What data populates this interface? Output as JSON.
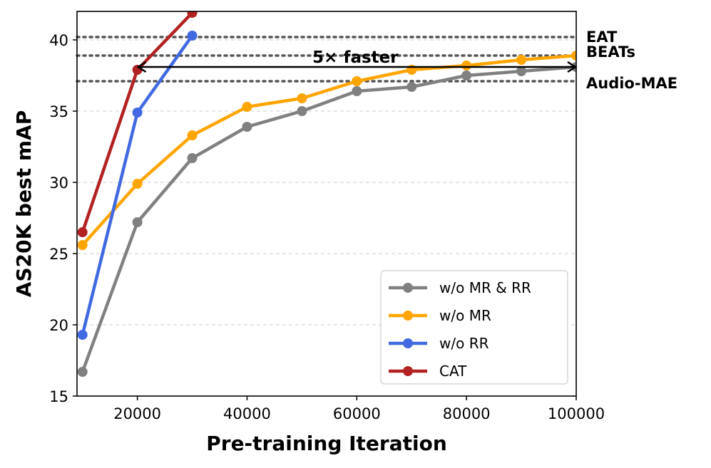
{
  "chart_data": {
    "type": "line",
    "xlabel": "Pre-training Iteration",
    "ylabel": "AS20K best mAP",
    "xlim": [
      9000,
      100000
    ],
    "ylim": [
      15,
      42
    ],
    "xticks": [
      20000,
      40000,
      60000,
      80000,
      100000
    ],
    "xtick_labels": [
      "20000",
      "40000",
      "60000",
      "80000",
      "100000"
    ],
    "yticks": [
      15,
      20,
      25,
      30,
      35,
      40
    ],
    "ytick_labels": [
      "15",
      "20",
      "25",
      "30",
      "35",
      "40"
    ],
    "grid": "horizontal dashed",
    "legend_position": "lower-right",
    "series": [
      {
        "name": "w/o MR & RR",
        "color": "#808080",
        "x": [
          10000,
          20000,
          30000,
          40000,
          50000,
          60000,
          70000,
          80000,
          90000,
          100000
        ],
        "values": [
          16.7,
          27.2,
          31.7,
          33.9,
          35.0,
          36.4,
          36.7,
          37.5,
          37.8,
          38.1
        ]
      },
      {
        "name": "w/o MR",
        "color": "#FFA500",
        "x": [
          10000,
          20000,
          30000,
          40000,
          50000,
          60000,
          70000,
          80000,
          90000,
          100000
        ],
        "values": [
          25.6,
          29.9,
          33.3,
          35.3,
          35.9,
          37.1,
          37.9,
          38.2,
          38.6,
          38.9
        ]
      },
      {
        "name": "w/o RR",
        "color": "#4169E1",
        "x": [
          10000,
          20000,
          30000
        ],
        "values": [
          19.3,
          34.9,
          40.3
        ]
      },
      {
        "name": "CAT",
        "color": "#B22222",
        "x": [
          10000,
          20000,
          30000
        ],
        "values": [
          26.5,
          37.9,
          41.9
        ]
      }
    ],
    "reference_lines": [
      {
        "label": "EAT",
        "value": 40.2
      },
      {
        "label": "BEATs",
        "value": 38.9
      },
      {
        "label": "Audio-MAE",
        "value": 37.1
      }
    ],
    "annotation": {
      "text": "5× faster",
      "from_x": 20000,
      "to_x": 100000,
      "y": 38.1
    }
  }
}
